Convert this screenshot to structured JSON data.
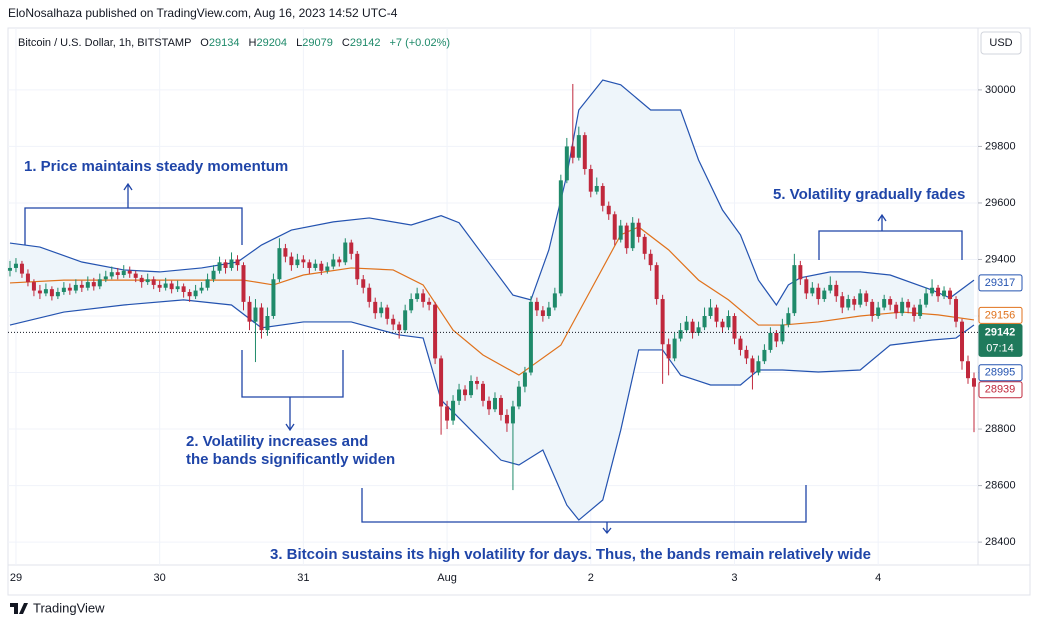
{
  "header": {
    "publisher": "EloNosalhaza published on TradingView.com, Aug 16, 2023 14:52 UTC-4",
    "symbol": "Bitcoin / U.S. Dollar, 1h, BITSTAMP",
    "ohlc_letters": [
      "O",
      "H",
      "L",
      "C"
    ],
    "ohlc_values": [
      29134,
      29204,
      29079,
      29142
    ],
    "change": "+7 (+0.02%)",
    "currency": "USD"
  },
  "chart_data": {
    "type": "candlestick",
    "up_color": "#1f8a6a",
    "down_color": "#c0283c",
    "ylim": [
      28319,
      30219
    ],
    "yticks": [
      28400,
      28600,
      28800,
      29000,
      29200,
      29400,
      29600,
      29800,
      30000
    ],
    "xlim": [
      -0.33,
      161.67
    ],
    "xticks": [
      {
        "value": 1,
        "label": "29"
      },
      {
        "value": 25,
        "label": "30"
      },
      {
        "value": 49,
        "label": "31"
      },
      {
        "value": 73,
        "label": "Aug"
      },
      {
        "value": 97,
        "label": "2"
      },
      {
        "value": 121,
        "label": "3"
      },
      {
        "value": 145,
        "label": "4"
      }
    ],
    "ohlc": [
      [
        29360,
        29395,
        29340,
        29370
      ],
      [
        29370,
        29405,
        29355,
        29385
      ],
      [
        29385,
        29395,
        29335,
        29350
      ],
      [
        29350,
        29365,
        29305,
        29320
      ],
      [
        29320,
        29330,
        29270,
        29290
      ],
      [
        29290,
        29310,
        29260,
        29280
      ],
      [
        29280,
        29315,
        29270,
        29295
      ],
      [
        29295,
        29305,
        29255,
        29270
      ],
      [
        29270,
        29300,
        29260,
        29285
      ],
      [
        29285,
        29320,
        29275,
        29300
      ],
      [
        29300,
        29315,
        29275,
        29290
      ],
      [
        29290,
        29330,
        29280,
        29310
      ],
      [
        29310,
        29325,
        29285,
        29300
      ],
      [
        29300,
        29340,
        29290,
        29320
      ],
      [
        29320,
        29335,
        29290,
        29305
      ],
      [
        29305,
        29350,
        29295,
        29330
      ],
      [
        29330,
        29360,
        29320,
        29340
      ],
      [
        29340,
        29375,
        29330,
        29355
      ],
      [
        29355,
        29370,
        29330,
        29345
      ],
      [
        29345,
        29380,
        29335,
        29360
      ],
      [
        29360,
        29375,
        29335,
        29350
      ],
      [
        29350,
        29360,
        29320,
        29335
      ],
      [
        29335,
        29345,
        29300,
        29320
      ],
      [
        29320,
        29350,
        29310,
        29330
      ],
      [
        29330,
        29340,
        29295,
        29310
      ],
      [
        29310,
        29325,
        29285,
        29300
      ],
      [
        29300,
        29335,
        29290,
        29315
      ],
      [
        29315,
        29325,
        29280,
        29295
      ],
      [
        29295,
        29325,
        29285,
        29305
      ],
      [
        29305,
        29315,
        29265,
        29285
      ],
      [
        29285,
        29295,
        29250,
        29270
      ],
      [
        29270,
        29310,
        29260,
        29290
      ],
      [
        29290,
        29320,
        29280,
        29300
      ],
      [
        29300,
        29350,
        29290,
        29330
      ],
      [
        29330,
        29380,
        29320,
        29360
      ],
      [
        29360,
        29410,
        29350,
        29390
      ],
      [
        29390,
        29400,
        29350,
        29370
      ],
      [
        29370,
        29425,
        29360,
        29400
      ],
      [
        29400,
        29415,
        29360,
        29380
      ],
      [
        29380,
        29390,
        29220,
        29250
      ],
      [
        29250,
        29270,
        29150,
        29180
      ],
      [
        29180,
        29260,
        29037,
        29230
      ],
      [
        29230,
        29245,
        29120,
        29150
      ],
      [
        29150,
        29230,
        29130,
        29200
      ],
      [
        29200,
        29350,
        29190,
        29330
      ],
      [
        29330,
        29475,
        29320,
        29440
      ],
      [
        29440,
        29455,
        29390,
        29410
      ],
      [
        29410,
        29425,
        29360,
        29380
      ],
      [
        29380,
        29420,
        29370,
        29400
      ],
      [
        29400,
        29415,
        29370,
        29390
      ],
      [
        29390,
        29400,
        29350,
        29370
      ],
      [
        29370,
        29400,
        29360,
        29385
      ],
      [
        29385,
        29395,
        29345,
        29360
      ],
      [
        29360,
        29390,
        29350,
        29375
      ],
      [
        29375,
        29420,
        29365,
        29400
      ],
      [
        29400,
        29410,
        29375,
        29390
      ],
      [
        29390,
        29475,
        29380,
        29460
      ],
      [
        29460,
        29470,
        29400,
        29420
      ],
      [
        29420,
        29430,
        29310,
        29330
      ],
      [
        29330,
        29345,
        29280,
        29300
      ],
      [
        29300,
        29315,
        29230,
        29250
      ],
      [
        29250,
        29265,
        29190,
        29210
      ],
      [
        29210,
        29250,
        29195,
        29230
      ],
      [
        29230,
        29240,
        29170,
        29190
      ],
      [
        29190,
        29205,
        29150,
        29170
      ],
      [
        29170,
        29180,
        29120,
        29150
      ],
      [
        29150,
        29240,
        29140,
        29220
      ],
      [
        29220,
        29280,
        29210,
        29260
      ],
      [
        29260,
        29300,
        29250,
        29280
      ],
      [
        29280,
        29295,
        29230,
        29250
      ],
      [
        29250,
        29265,
        29220,
        29240
      ],
      [
        29240,
        29250,
        29030,
        29050
      ],
      [
        29050,
        29060,
        28780,
        28880
      ],
      [
        28880,
        28900,
        28800,
        28830
      ],
      [
        28830,
        28920,
        28815,
        28900
      ],
      [
        28900,
        28960,
        28885,
        28940
      ],
      [
        28940,
        28955,
        28900,
        28920
      ],
      [
        28920,
        28990,
        28910,
        28970
      ],
      [
        28970,
        28985,
        28940,
        28960
      ],
      [
        28960,
        28970,
        28880,
        28900
      ],
      [
        28900,
        28915,
        28850,
        28870
      ],
      [
        28870,
        28930,
        28860,
        28910
      ],
      [
        28910,
        28920,
        28830,
        28850
      ],
      [
        28850,
        28870,
        28790,
        28820
      ],
      [
        28820,
        28900,
        28584,
        28880
      ],
      [
        28880,
        28970,
        28870,
        28950
      ],
      [
        28950,
        29020,
        28930,
        29000
      ],
      [
        29000,
        29270,
        28990,
        29250
      ],
      [
        29250,
        29265,
        29200,
        29220
      ],
      [
        29220,
        29235,
        29180,
        29200
      ],
      [
        29200,
        29250,
        29190,
        29230
      ],
      [
        29230,
        29300,
        29220,
        29280
      ],
      [
        29280,
        29700,
        29270,
        29680
      ],
      [
        29680,
        29830,
        29670,
        29800
      ],
      [
        29800,
        30021,
        29740,
        29760
      ],
      [
        29760,
        29870,
        29750,
        29840
      ],
      [
        29840,
        29850,
        29700,
        29720
      ],
      [
        29720,
        29735,
        29620,
        29640
      ],
      [
        29640,
        29690,
        29630,
        29660
      ],
      [
        29660,
        29670,
        29570,
        29590
      ],
      [
        29590,
        29605,
        29540,
        29560
      ],
      [
        29560,
        29570,
        29450,
        29470
      ],
      [
        29470,
        29540,
        29460,
        29520
      ],
      [
        29520,
        29530,
        29420,
        29440
      ],
      [
        29440,
        29550,
        29430,
        29530
      ],
      [
        29530,
        29545,
        29460,
        29480
      ],
      [
        29480,
        29490,
        29400,
        29420
      ],
      [
        29420,
        29435,
        29360,
        29380
      ],
      [
        29380,
        29390,
        29240,
        29260
      ],
      [
        29260,
        29275,
        28960,
        29100
      ],
      [
        29100,
        29120,
        28990,
        29050
      ],
      [
        29050,
        29140,
        29040,
        29120
      ],
      [
        29120,
        29175,
        29110,
        29150
      ],
      [
        29150,
        29200,
        29140,
        29180
      ],
      [
        29180,
        29190,
        29120,
        29140
      ],
      [
        29140,
        29180,
        29130,
        29160
      ],
      [
        29160,
        29230,
        29150,
        29200
      ],
      [
        29200,
        29260,
        29190,
        29230
      ],
      [
        29230,
        29240,
        29160,
        29180
      ],
      [
        29180,
        29190,
        29140,
        29160
      ],
      [
        29160,
        29220,
        29150,
        29200
      ],
      [
        29200,
        29210,
        29100,
        29120
      ],
      [
        29120,
        29130,
        29060,
        29080
      ],
      [
        29080,
        29095,
        29030,
        29050
      ],
      [
        29050,
        29060,
        28940,
        29000
      ],
      [
        29000,
        29060,
        28990,
        29040
      ],
      [
        29040,
        29100,
        29030,
        29080
      ],
      [
        29080,
        29160,
        29070,
        29140
      ],
      [
        29140,
        29150,
        29090,
        29110
      ],
      [
        29110,
        29190,
        29100,
        29170
      ],
      [
        29170,
        29230,
        29160,
        29210
      ],
      [
        29210,
        29420,
        29200,
        29380
      ],
      [
        29380,
        29395,
        29310,
        29330
      ],
      [
        29330,
        29340,
        29260,
        29280
      ],
      [
        29280,
        29320,
        29270,
        29300
      ],
      [
        29300,
        29315,
        29240,
        29260
      ],
      [
        29260,
        29300,
        29250,
        29290
      ],
      [
        29290,
        29340,
        29280,
        29310
      ],
      [
        29310,
        29325,
        29250,
        29270
      ],
      [
        29270,
        29285,
        29210,
        29230
      ],
      [
        29230,
        29275,
        29220,
        29260
      ],
      [
        29260,
        29270,
        29220,
        29240
      ],
      [
        29240,
        29295,
        29230,
        29280
      ],
      [
        29280,
        29290,
        29235,
        29250
      ],
      [
        29250,
        29260,
        29180,
        29200
      ],
      [
        29200,
        29250,
        29190,
        29230
      ],
      [
        29230,
        29275,
        29220,
        29260
      ],
      [
        29260,
        29270,
        29220,
        29240
      ],
      [
        29240,
        29250,
        29190,
        29210
      ],
      [
        29210,
        29265,
        29200,
        29250
      ],
      [
        29250,
        29260,
        29210,
        29230
      ],
      [
        29230,
        29240,
        29180,
        29200
      ],
      [
        29200,
        29260,
        29190,
        29240
      ],
      [
        29240,
        29300,
        29230,
        29280
      ],
      [
        29280,
        29330,
        29270,
        29300
      ],
      [
        29300,
        29310,
        29250,
        29270
      ],
      [
        29270,
        29305,
        29260,
        29290
      ],
      [
        29290,
        29300,
        29240,
        29260
      ],
      [
        29260,
        29270,
        29160,
        29180
      ],
      [
        29180,
        29190,
        29010,
        29040
      ],
      [
        29040,
        29060,
        28960,
        28980
      ],
      [
        28980,
        29000,
        28789,
        28950
      ]
    ],
    "bands": [
      {
        "color": "#2453b0",
        "x": [
          0,
          5,
          12,
          19,
          25,
          32,
          38,
          42,
          47,
          54,
          60,
          67,
          72,
          75,
          79,
          84,
          87,
          90,
          93,
          95,
          99,
          102,
          107,
          112,
          115,
          119,
          122,
          125,
          128,
          130,
          132,
          137,
          142,
          147,
          154,
          157,
          161
        ],
        "values": [
          29458,
          29444,
          29391,
          29363,
          29356,
          29370,
          29391,
          29451,
          29504,
          29533,
          29547,
          29522,
          29555,
          29530,
          29416,
          29274,
          29257,
          29434,
          29699,
          29929,
          30035,
          30018,
          29929,
          29929,
          29752,
          29575,
          29487,
          29327,
          29239,
          29310,
          29335,
          29356,
          29356,
          29345,
          29292,
          29264,
          29327
        ]
      },
      {
        "color": "#e0721c",
        "x": [
          0,
          9,
          19,
          32,
          39,
          44,
          49,
          57,
          64,
          69,
          74,
          79,
          85,
          92,
          97,
          102,
          105,
          110,
          115,
          120,
          125,
          129,
          135,
          142,
          149,
          155,
          161
        ],
        "values": [
          29317,
          29327,
          29327,
          29327,
          29327,
          29310,
          29345,
          29370,
          29363,
          29310,
          29150,
          29062,
          28991,
          29097,
          29292,
          29487,
          29515,
          29434,
          29327,
          29257,
          29168,
          29168,
          29179,
          29200,
          29214,
          29204,
          29186
        ]
      },
      {
        "color": "#2453b0",
        "x": [
          0,
          9,
          19,
          29,
          37,
          42,
          49,
          57,
          62,
          65,
          69,
          72,
          77,
          82,
          85,
          89,
          93,
          95,
          99,
          102,
          105,
          109,
          112,
          117,
          122,
          125,
          129,
          135,
          142,
          147,
          154,
          158,
          161
        ],
        "values": [
          29168,
          29214,
          29239,
          29257,
          29239,
          29158,
          29179,
          29179,
          29150,
          29133,
          29122,
          28903,
          28796,
          28690,
          28673,
          28726,
          28531,
          28478,
          28549,
          28796,
          29080,
          29080,
          28991,
          28956,
          28956,
          29009,
          29009,
          29002,
          29009,
          29097,
          29115,
          29122,
          29168
        ]
      }
    ],
    "band_fill": "#eef5fa",
    "price_labels": [
      {
        "value": 29317,
        "color": "#2453b0"
      },
      {
        "value": 29156,
        "color": "#e0721c"
      },
      {
        "value": 29142,
        "color": "#1f7a5c",
        "countdown": "07:14",
        "dotted": true
      },
      {
        "value": 28995,
        "color": "#2453b0"
      },
      {
        "value": 28939,
        "color": "#c0283c"
      }
    ]
  },
  "annotations": [
    {
      "lines": [
        "1. Price maintains steady momentum"
      ]
    },
    {
      "lines": [
        "2. Volatility increases and",
        "the bands significantly widen"
      ]
    },
    {
      "lines": [
        "3. Bitcoin sustains its high volatility for days. Thus, the bands remain relatively wide"
      ]
    },
    {
      "lines": [
        "5. Volatility gradually fades"
      ]
    }
  ],
  "footer": "TradingView"
}
